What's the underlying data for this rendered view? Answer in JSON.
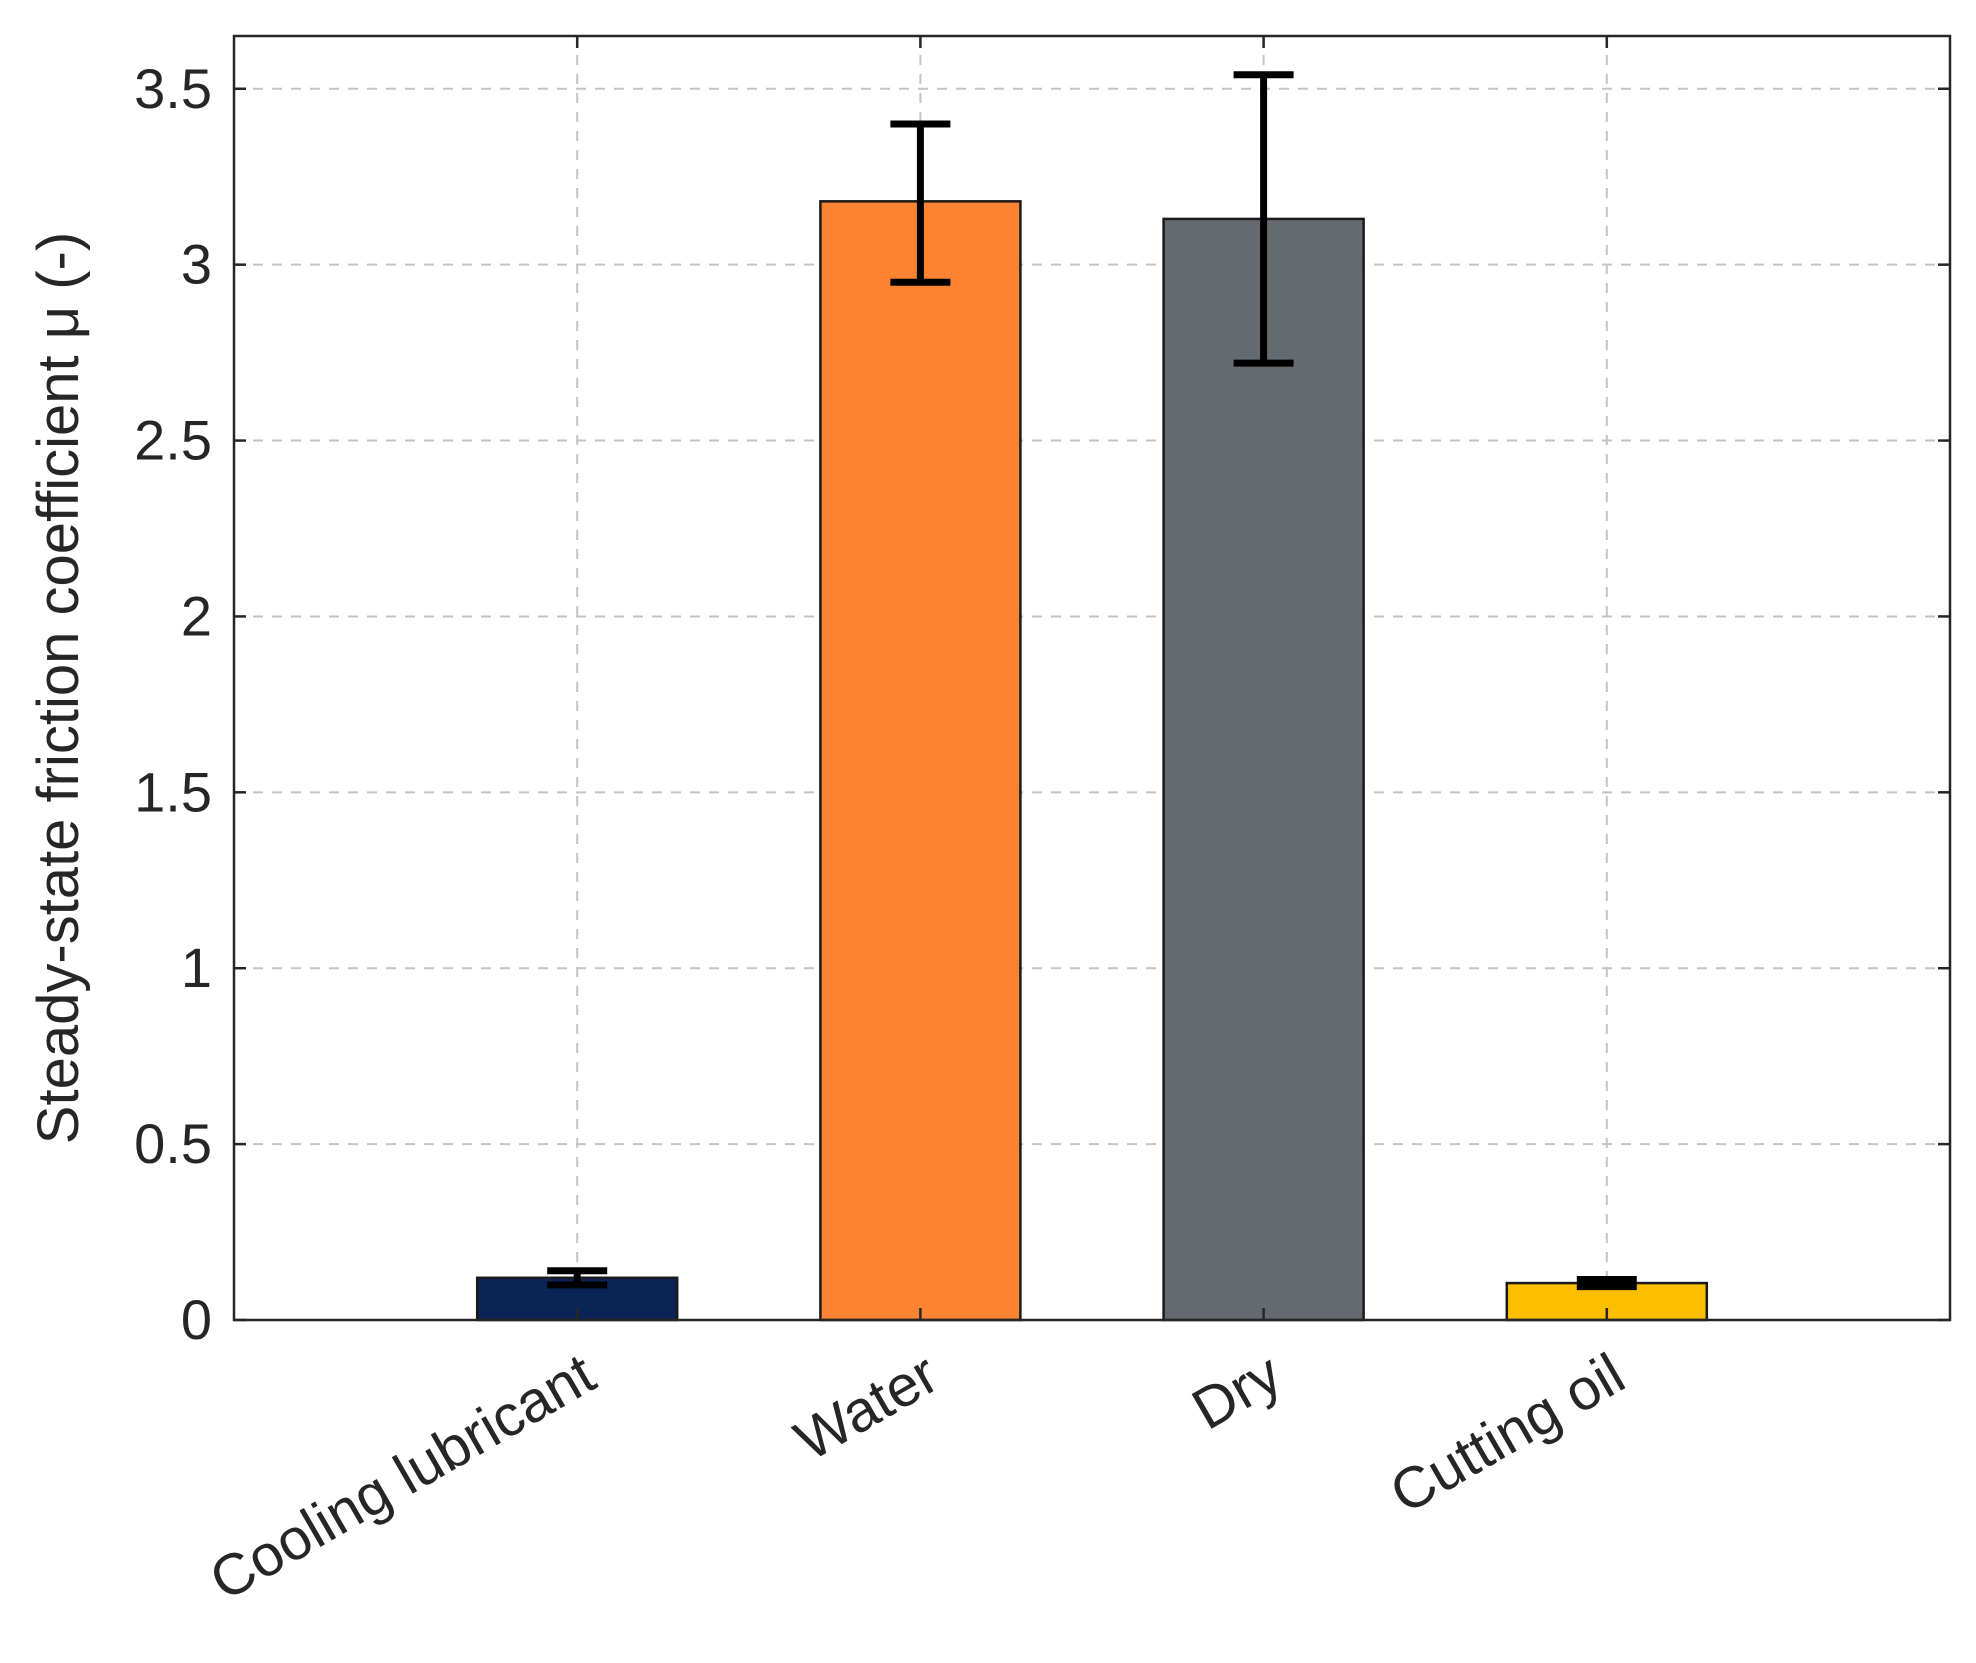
{
  "chart_data": {
    "type": "bar",
    "categories": [
      "Cooling lubricant",
      "Water",
      "Dry",
      "Cutting oil"
    ],
    "values": [
      0.12,
      3.18,
      3.13,
      0.105
    ],
    "error_low": [
      0.1,
      2.95,
      2.72,
      0.095
    ],
    "error_high": [
      0.14,
      3.4,
      3.54,
      0.115
    ],
    "colors": [
      "#0b2456",
      "#fc8332",
      "#656a70",
      "#fbbf00"
    ],
    "xlabel": "",
    "ylabel": "Steady-state friction coefficient μ (-)",
    "ylim": [
      0,
      3.65
    ],
    "yticks": [
      0,
      0.5,
      1,
      1.5,
      2,
      2.5,
      3,
      3.5
    ],
    "ytick_labels": [
      "0",
      "0.5",
      "1",
      "1.5",
      "2",
      "2.5",
      "3",
      "3.5"
    ],
    "grid": true,
    "legend": "none"
  }
}
